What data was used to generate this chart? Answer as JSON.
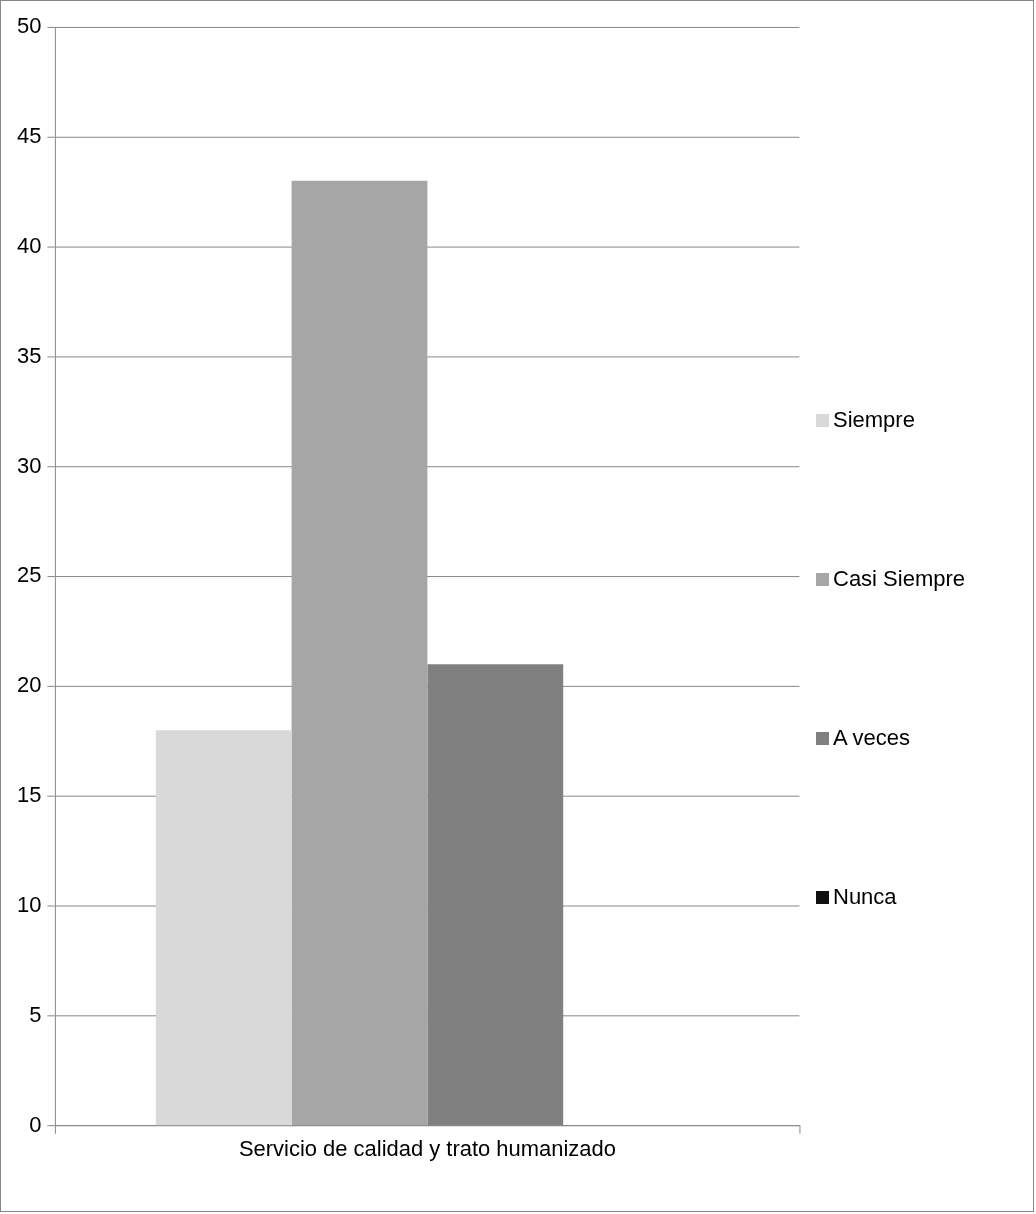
{
  "chart_data": {
    "type": "bar",
    "categories": [
      "Servicio de calidad y trato humanizado"
    ],
    "series": [
      {
        "name": "Siempre",
        "color": "#d9d9d9",
        "values": [
          18
        ]
      },
      {
        "name": "Casi Siempre",
        "color": "#a6a6a6",
        "values": [
          43
        ]
      },
      {
        "name": "A veces",
        "color": "#808080",
        "values": [
          21
        ]
      },
      {
        "name": "Nunca",
        "color": "#111111",
        "values": [
          0
        ]
      }
    ],
    "ylim": [
      0,
      50
    ],
    "yticks": [
      0,
      5,
      10,
      15,
      20,
      25,
      30,
      35,
      40,
      45,
      50
    ],
    "grid": "y",
    "legend": "right"
  }
}
